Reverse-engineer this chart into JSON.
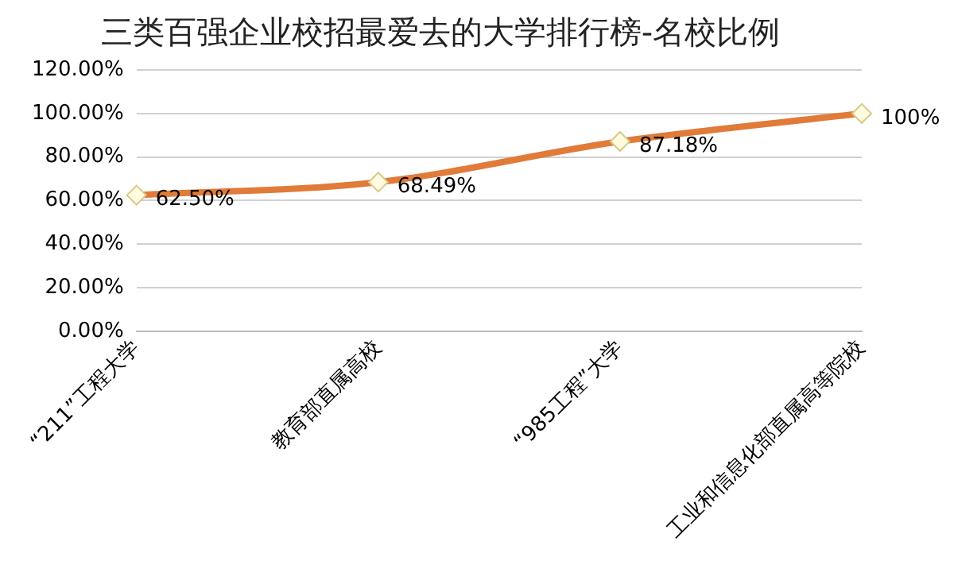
{
  "chart_data": {
    "type": "line",
    "title": "三类百强企业校招最爱去的大学排行榜-名校比例",
    "categories": [
      "“211”工程大学",
      "教育部直属高校",
      "“985工程”大学",
      "工业和信息化部直属高等院校"
    ],
    "series": [
      {
        "color": "#e07b39",
        "values": [
          62.5,
          68.49,
          87.18,
          100
        ],
        "value_labels": [
          "62.50%",
          "68.49%",
          "87.18%",
          "100%"
        ]
      }
    ],
    "ylim": [
      0,
      120
    ],
    "yticks": [
      {
        "value": 0,
        "label": "0.00%"
      },
      {
        "value": 20,
        "label": "20.00%"
      },
      {
        "value": 40,
        "label": "40.00%"
      },
      {
        "value": 60,
        "label": "60.00%"
      },
      {
        "value": 80,
        "label": "80.00%"
      },
      {
        "value": 100,
        "label": "100.00%"
      },
      {
        "value": 120,
        "label": "120.00%"
      }
    ],
    "grid": "y",
    "legend": false,
    "marker": "diamond",
    "line_style": "solid"
  }
}
